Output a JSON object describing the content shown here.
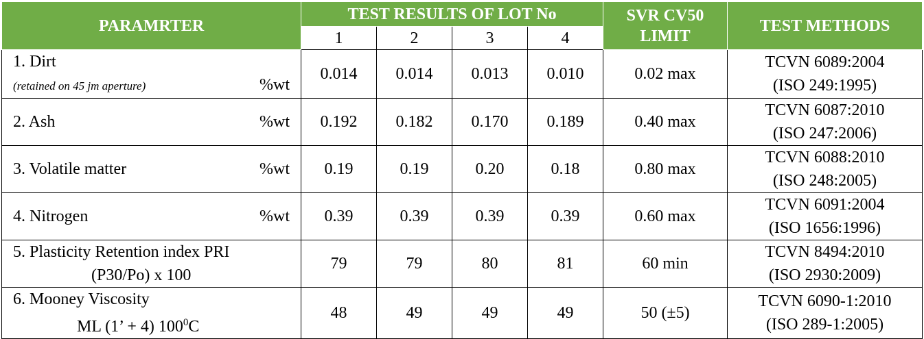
{
  "header": {
    "parameter": "PARAMRTER",
    "lot_group": "TEST RESULTS OF LOT No",
    "lots": [
      "1",
      "2",
      "3",
      "4"
    ],
    "limit": "SVR CV50 LIMIT",
    "methods": "TEST METHODS"
  },
  "rows": [
    {
      "name": [
        "1. Dirt"
      ],
      "note": "(retained on 45 jm aperture)",
      "unit": "%wt",
      "results": [
        "0.014",
        "0.014",
        "0.013",
        "0.010"
      ],
      "limit": "0.02 max",
      "method": [
        "TCVN 6089:2004",
        "(ISO 249:1995)"
      ]
    },
    {
      "name": [
        "2. Ash"
      ],
      "unit": "%wt",
      "results": [
        "0.192",
        "0.182",
        "0.170",
        "0.189"
      ],
      "limit": "0.40 max",
      "method": [
        "TCVN 6087:2010",
        "(ISO 247:2006)"
      ]
    },
    {
      "name": [
        "3. Volatile matter"
      ],
      "unit": "%wt",
      "results": [
        "0.19",
        "0.19",
        "0.20",
        "0.18"
      ],
      "limit": "0.80 max",
      "method": [
        "TCVN 6088:2010",
        "(ISO 248:2005)"
      ]
    },
    {
      "name": [
        "4. Nitrogen"
      ],
      "unit": "%wt",
      "results": [
        "0.39",
        "0.39",
        "0.39",
        "0.39"
      ],
      "limit": "0.60 max",
      "method": [
        "TCVN 6091:2004",
        "(ISO 1656:1996)"
      ]
    },
    {
      "name": [
        "5. Plasticity Retention index PRI",
        "(P30/Po) x 100"
      ],
      "results": [
        "79",
        "79",
        "80",
        "81"
      ],
      "limit": "60 min",
      "method": [
        "TCVN 8494:2010",
        "(ISO 2930:2009)"
      ]
    },
    {
      "name": [
        "6. Mooney Viscosity"
      ],
      "formula": {
        "text": "ML (1’ + 4) 100",
        "sup": "0",
        "after": "C"
      },
      "results": [
        "48",
        "49",
        "49",
        "49"
      ],
      "limit": "50 (±5)",
      "method": [
        "TCVN 6090-1:2010",
        "(ISO 289-1:2005)"
      ]
    }
  ]
}
